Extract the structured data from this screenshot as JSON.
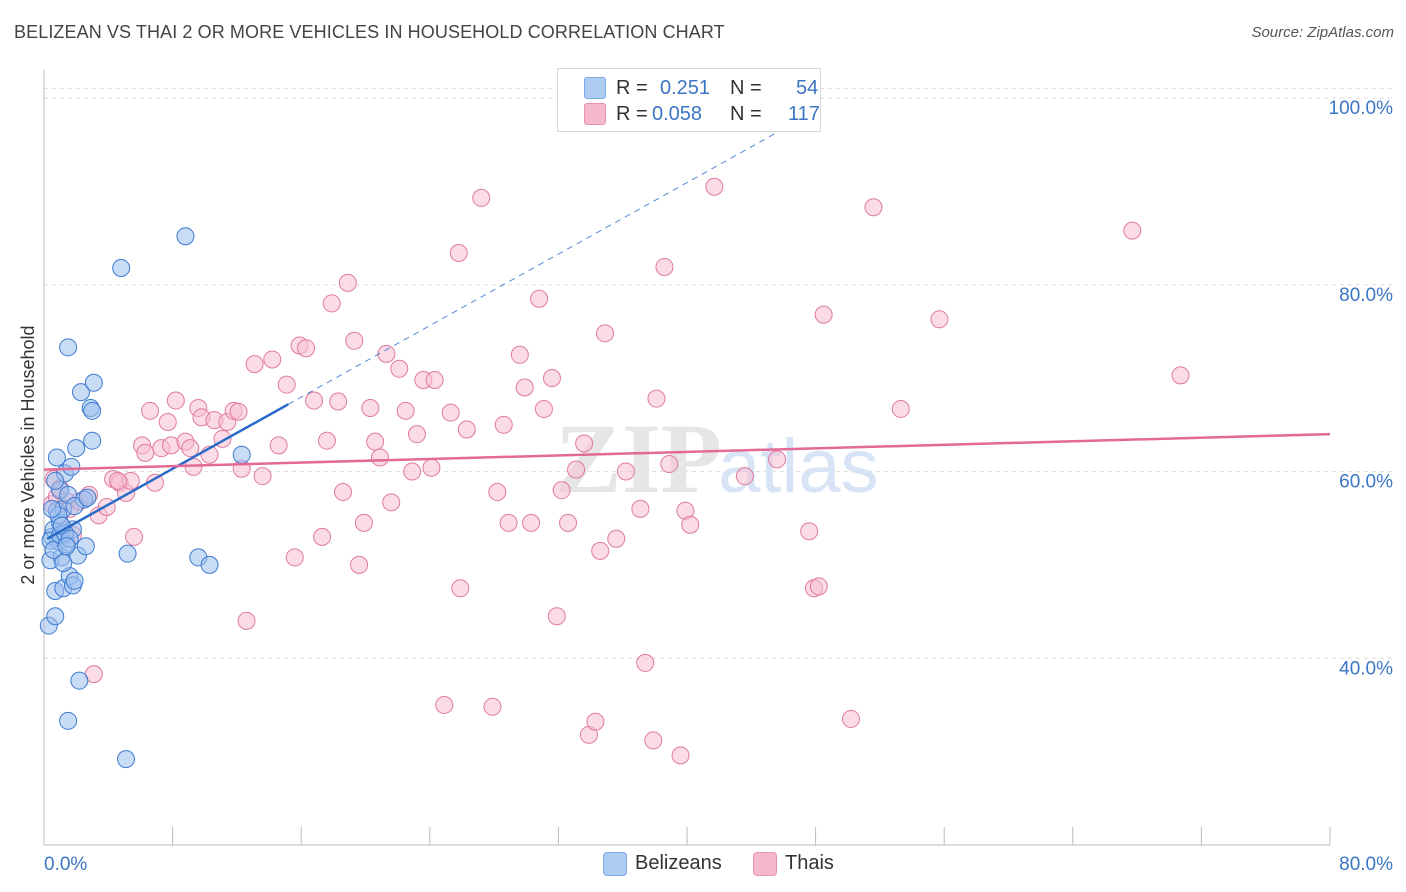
{
  "header": {
    "title": "BELIZEAN VS THAI 2 OR MORE VEHICLES IN HOUSEHOLD CORRELATION CHART",
    "source": "Source: ZipAtlas.com"
  },
  "watermark": {
    "zip": "ZIP",
    "atlas": "atlas"
  },
  "legend": {
    "rows": [
      {
        "r_label": "R =",
        "r_value": "0.251",
        "n_label": "N =",
        "n_value": "54",
        "color": "#aecbf2"
      },
      {
        "r_label": "R =",
        "r_value": "0.058",
        "n_label": "N =",
        "n_value": "117",
        "color": "#f6b8cc"
      }
    ]
  },
  "bottom_legend": {
    "items": [
      {
        "label": "Belizeans",
        "color": "#aecbf2"
      },
      {
        "label": "Thais",
        "color": "#f6b8cc"
      }
    ]
  },
  "colors": {
    "blue_fill": "#9cc0ee",
    "blue_stroke": "#3d7bd0",
    "blue_line": "#2a6bc8",
    "pink_fill": "#f7bfd2",
    "pink_stroke": "#e07aa0",
    "pink_line": "#e46a96",
    "tick_text": "#3b76c4",
    "grid": "#dddddd"
  },
  "chart_data": {
    "type": "scatter",
    "title": "BELIZEAN VS THAI 2 OR MORE VEHICLES IN HOUSEHOLD CORRELATION CHART",
    "xlabel": "",
    "ylabel": "2 or more Vehicles in Household",
    "xlim": [
      0,
      80
    ],
    "ylim": [
      20,
      103
    ],
    "x_tick_labels": [
      "0.0%",
      "80.0%"
    ],
    "y_ticks": [
      40,
      60,
      80,
      100
    ],
    "y_tick_labels": [
      "40.0%",
      "60.0%",
      "80.0%",
      "100.0%"
    ],
    "grid": true,
    "legend_position": "top-center",
    "series": [
      {
        "name": "Belizeans",
        "R": 0.251,
        "N": 54,
        "trend": {
          "x": [
            0.2,
            15.2
          ],
          "y": [
            52.8,
            67.2
          ],
          "dashed_extension_to": [
            48.0,
            98.6
          ]
        },
        "points": [
          [
            0.3,
            43.5
          ],
          [
            0.4,
            50.5
          ],
          [
            0.5,
            53.0
          ],
          [
            0.6,
            53.8
          ],
          [
            0.7,
            44.5
          ],
          [
            0.7,
            47.2
          ],
          [
            0.8,
            55.8
          ],
          [
            0.8,
            61.5
          ],
          [
            0.9,
            52.5
          ],
          [
            1.0,
            54.5
          ],
          [
            1.0,
            58.0
          ],
          [
            1.1,
            50.8
          ],
          [
            1.2,
            56.0
          ],
          [
            1.2,
            47.5
          ],
          [
            1.3,
            59.8
          ],
          [
            1.4,
            52.2
          ],
          [
            1.5,
            57.5
          ],
          [
            1.5,
            33.3
          ],
          [
            1.6,
            48.8
          ],
          [
            1.7,
            60.5
          ],
          [
            1.8,
            53.8
          ],
          [
            1.8,
            47.8
          ],
          [
            1.9,
            48.3
          ],
          [
            2.0,
            62.5
          ],
          [
            2.1,
            51.0
          ],
          [
            2.2,
            37.6
          ],
          [
            2.3,
            68.5
          ],
          [
            2.5,
            57.0
          ],
          [
            2.6,
            52.0
          ],
          [
            2.9,
            66.8
          ],
          [
            3.0,
            63.3
          ],
          [
            3.1,
            69.5
          ],
          [
            1.5,
            73.3
          ],
          [
            4.8,
            81.8
          ],
          [
            5.1,
            29.2
          ],
          [
            5.2,
            51.2
          ],
          [
            8.8,
            85.2
          ],
          [
            9.6,
            50.8
          ],
          [
            10.3,
            50.0
          ],
          [
            12.3,
            61.8
          ],
          [
            0.4,
            52.6
          ],
          [
            0.6,
            51.6
          ],
          [
            1.0,
            53.2
          ],
          [
            0.9,
            55.3
          ],
          [
            1.3,
            53.4
          ],
          [
            0.5,
            56.0
          ],
          [
            1.1,
            54.2
          ],
          [
            1.6,
            52.8
          ],
          [
            1.9,
            56.3
          ],
          [
            0.7,
            59.0
          ],
          [
            1.2,
            50.2
          ],
          [
            2.7,
            57.2
          ],
          [
            3.0,
            66.5
          ],
          [
            1.4,
            52.0
          ]
        ]
      },
      {
        "name": "Thais",
        "R": 0.058,
        "N": 117,
        "trend": {
          "x": [
            0,
            80
          ],
          "y": [
            60.2,
            64.0
          ]
        },
        "points": [
          [
            0.5,
            56.5
          ],
          [
            0.6,
            59.2
          ],
          [
            0.8,
            57.3
          ],
          [
            1.0,
            58.2
          ],
          [
            1.2,
            53.8
          ],
          [
            1.4,
            56.8
          ],
          [
            1.6,
            56.0
          ],
          [
            1.8,
            53.2
          ],
          [
            2.2,
            56.8
          ],
          [
            2.8,
            57.5
          ],
          [
            3.1,
            38.3
          ],
          [
            3.4,
            55.3
          ],
          [
            3.9,
            56.2
          ],
          [
            4.3,
            59.2
          ],
          [
            4.7,
            58.8
          ],
          [
            5.1,
            57.7
          ],
          [
            5.4,
            59.0
          ],
          [
            5.6,
            53.0
          ],
          [
            6.1,
            62.8
          ],
          [
            6.3,
            62.0
          ],
          [
            6.6,
            66.5
          ],
          [
            6.9,
            58.8
          ],
          [
            7.3,
            62.5
          ],
          [
            7.7,
            65.3
          ],
          [
            7.9,
            62.8
          ],
          [
            8.2,
            67.6
          ],
          [
            8.8,
            63.2
          ],
          [
            9.3,
            60.5
          ],
          [
            9.6,
            66.8
          ],
          [
            9.8,
            65.8
          ],
          [
            10.3,
            61.8
          ],
          [
            10.6,
            65.5
          ],
          [
            11.1,
            63.5
          ],
          [
            11.4,
            65.3
          ],
          [
            11.8,
            66.5
          ],
          [
            12.3,
            60.3
          ],
          [
            12.6,
            44.0
          ],
          [
            13.1,
            71.5
          ],
          [
            13.6,
            59.5
          ],
          [
            14.2,
            72.0
          ],
          [
            14.6,
            62.8
          ],
          [
            15.1,
            69.3
          ],
          [
            15.6,
            50.8
          ],
          [
            15.9,
            73.5
          ],
          [
            16.3,
            73.2
          ],
          [
            16.8,
            67.6
          ],
          [
            17.3,
            53.0
          ],
          [
            17.6,
            63.3
          ],
          [
            17.9,
            78.0
          ],
          [
            18.3,
            67.5
          ],
          [
            18.6,
            57.8
          ],
          [
            18.9,
            80.2
          ],
          [
            19.3,
            74.0
          ],
          [
            19.6,
            50.0
          ],
          [
            19.9,
            54.5
          ],
          [
            20.3,
            66.8
          ],
          [
            20.6,
            63.2
          ],
          [
            20.9,
            61.5
          ],
          [
            21.3,
            72.6
          ],
          [
            21.6,
            56.7
          ],
          [
            22.1,
            71.0
          ],
          [
            22.5,
            66.5
          ],
          [
            22.9,
            60.0
          ],
          [
            23.2,
            64.0
          ],
          [
            23.6,
            69.8
          ],
          [
            24.1,
            60.4
          ],
          [
            24.3,
            69.8
          ],
          [
            24.9,
            35.0
          ],
          [
            25.3,
            66.3
          ],
          [
            25.9,
            47.5
          ],
          [
            25.8,
            83.4
          ],
          [
            26.3,
            64.5
          ],
          [
            27.2,
            89.3
          ],
          [
            27.9,
            34.8
          ],
          [
            28.2,
            57.8
          ],
          [
            28.6,
            65.0
          ],
          [
            28.9,
            54.5
          ],
          [
            29.6,
            72.5
          ],
          [
            29.9,
            69.0
          ],
          [
            30.3,
            54.5
          ],
          [
            30.8,
            78.5
          ],
          [
            31.1,
            66.7
          ],
          [
            31.6,
            70.0
          ],
          [
            31.9,
            44.5
          ],
          [
            32.2,
            58.0
          ],
          [
            32.6,
            54.5
          ],
          [
            33.1,
            60.2
          ],
          [
            33.6,
            63.0
          ],
          [
            33.9,
            31.8
          ],
          [
            34.3,
            33.2
          ],
          [
            34.6,
            51.5
          ],
          [
            34.9,
            74.8
          ],
          [
            35.6,
            52.8
          ],
          [
            36.2,
            60.0
          ],
          [
            37.1,
            56.0
          ],
          [
            37.4,
            39.5
          ],
          [
            37.9,
            31.2
          ],
          [
            38.1,
            67.8
          ],
          [
            38.6,
            81.9
          ],
          [
            38.9,
            60.8
          ],
          [
            39.6,
            29.6
          ],
          [
            39.9,
            55.8
          ],
          [
            40.2,
            54.3
          ],
          [
            41.7,
            90.5
          ],
          [
            43.6,
            59.5
          ],
          [
            45.6,
            61.3
          ],
          [
            47.6,
            53.6
          ],
          [
            47.9,
            47.5
          ],
          [
            48.2,
            47.7
          ],
          [
            48.5,
            76.8
          ],
          [
            50.2,
            33.5
          ],
          [
            51.6,
            88.3
          ],
          [
            53.3,
            66.7
          ],
          [
            55.7,
            76.3
          ],
          [
            67.7,
            85.8
          ],
          [
            70.7,
            70.3
          ],
          [
            4.6,
            59.0
          ],
          [
            9.1,
            62.5
          ],
          [
            12.1,
            66.4
          ]
        ]
      }
    ]
  }
}
